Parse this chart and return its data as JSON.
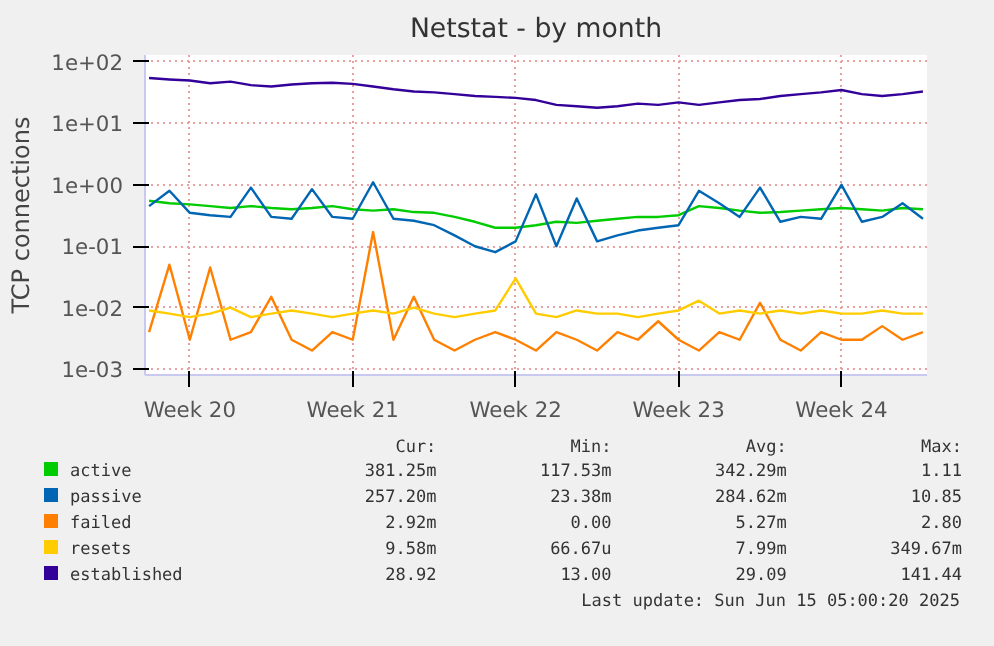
{
  "chart_data": {
    "type": "line",
    "title": "Netstat - by month",
    "ylabel": "TCP connections",
    "log": "y",
    "grid": true,
    "legend": "bottom",
    "categories": [
      null,
      null,
      "Week 20",
      null,
      null,
      null,
      null,
      null,
      null,
      null,
      "Week 21",
      null,
      null,
      null,
      null,
      null,
      null,
      null,
      "Week 22",
      null,
      null,
      null,
      null,
      null,
      null,
      null,
      "Week 23",
      null,
      null,
      null,
      null,
      null,
      null,
      null,
      "Week 24",
      null,
      null,
      null,
      null
    ],
    "ylim": [
      0.0008,
      130
    ],
    "yticks": [
      {
        "value": 0.001,
        "label": "1e-03"
      },
      {
        "value": 0.01,
        "label": "1e-02"
      },
      {
        "value": 0.1,
        "label": "1e-01"
      },
      {
        "value": 1,
        "label": "1e+00"
      },
      {
        "value": 10,
        "label": "1e+01"
      },
      {
        "value": 100,
        "label": "1e+02"
      }
    ],
    "series": [
      {
        "name": "active",
        "color": "#00cc00",
        "values": [
          0.55,
          0.5,
          0.48,
          0.45,
          0.42,
          0.45,
          0.42,
          0.4,
          0.42,
          0.45,
          0.4,
          0.38,
          0.4,
          0.36,
          0.35,
          0.3,
          0.25,
          0.2,
          0.2,
          0.22,
          0.25,
          0.24,
          0.26,
          0.28,
          0.3,
          0.3,
          0.32,
          0.45,
          0.42,
          0.38,
          0.35,
          0.36,
          0.38,
          0.4,
          0.42,
          0.4,
          0.38,
          0.42,
          0.4
        ]
      },
      {
        "name": "passive",
        "color": "#0066b3",
        "values": [
          0.45,
          0.8,
          0.35,
          0.32,
          0.3,
          0.9,
          0.3,
          0.28,
          0.85,
          0.3,
          0.28,
          1.1,
          0.28,
          0.26,
          0.22,
          0.15,
          0.1,
          0.08,
          0.12,
          0.7,
          0.1,
          0.6,
          0.12,
          0.15,
          0.18,
          0.2,
          0.22,
          0.8,
          0.5,
          0.3,
          0.9,
          0.25,
          0.3,
          0.28,
          1.0,
          0.25,
          0.3,
          0.5,
          0.28
        ]
      },
      {
        "name": "failed",
        "color": "#ff8000",
        "values": [
          0.004,
          0.05,
          0.003,
          0.045,
          0.003,
          0.004,
          0.015,
          0.003,
          0.002,
          0.004,
          0.003,
          0.17,
          0.003,
          0.015,
          0.003,
          0.002,
          0.003,
          0.004,
          0.003,
          0.002,
          0.004,
          0.003,
          0.002,
          0.004,
          0.003,
          0.006,
          0.003,
          0.002,
          0.004,
          0.003,
          0.012,
          0.003,
          0.002,
          0.004,
          0.003,
          0.003,
          0.005,
          0.003,
          0.004
        ]
      },
      {
        "name": "resets",
        "color": "#ffcc00",
        "values": [
          0.009,
          0.008,
          0.007,
          0.008,
          0.01,
          0.007,
          0.008,
          0.009,
          0.008,
          0.007,
          0.008,
          0.009,
          0.008,
          0.01,
          0.008,
          0.007,
          0.008,
          0.009,
          0.03,
          0.008,
          0.007,
          0.009,
          0.008,
          0.008,
          0.007,
          0.008,
          0.009,
          0.013,
          0.008,
          0.009,
          0.008,
          0.009,
          0.008,
          0.009,
          0.008,
          0.008,
          0.009,
          0.008,
          0.008
        ]
      },
      {
        "name": "established",
        "color": "#330099",
        "values": [
          55,
          52,
          50,
          45,
          48,
          42,
          40,
          43,
          45,
          46,
          44,
          40,
          36,
          33,
          32,
          30,
          28,
          27,
          26,
          24,
          20,
          19,
          18,
          19,
          21,
          20,
          22,
          20,
          22,
          24,
          25,
          28,
          30,
          32,
          35,
          30,
          28,
          30,
          33
        ]
      }
    ],
    "annotations": [
      "Cur:",
      "Min:",
      "Avg:",
      "Max:",
      "381.25m",
      "117.53m",
      "342.29m",
      "1.11",
      "257.20m",
      "23.38m",
      "284.62m",
      "10.85",
      "2.92m",
      "0.00",
      "5.27m",
      "2.80",
      "9.58m",
      "66.67u",
      "7.99m",
      "349.67m",
      "28.92",
      "13.00",
      "29.09",
      "141.44",
      "Last update: Sun Jun 15 05:00:20 2025"
    ]
  }
}
